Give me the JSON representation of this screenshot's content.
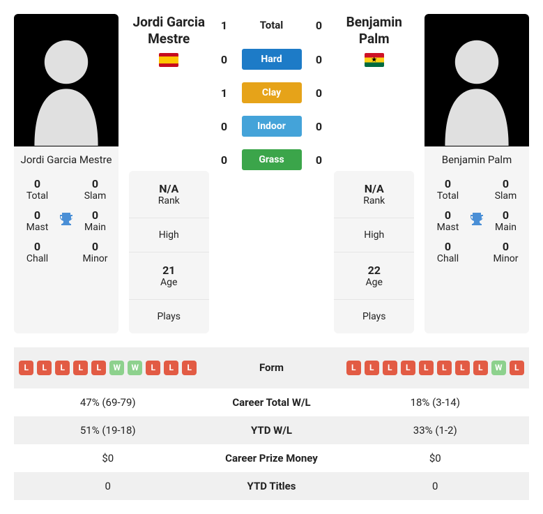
{
  "players": {
    "p1": {
      "name": "Jordi Garcia Mestre",
      "flag_class": "flag-es",
      "rank": "N/A",
      "high": "",
      "age": "21",
      "plays": "",
      "titles": {
        "total": "0",
        "slam": "0",
        "mast": "0",
        "main": "0",
        "chall": "0",
        "minor": "0"
      }
    },
    "p2": {
      "name": "Benjamin Palm",
      "flag_class": "flag-gh",
      "rank": "N/A",
      "high": "",
      "age": "22",
      "plays": "",
      "titles": {
        "total": "0",
        "slam": "0",
        "mast": "0",
        "main": "0",
        "chall": "0",
        "minor": "0"
      }
    }
  },
  "labels": {
    "rank": "Rank",
    "high": "High",
    "age": "Age",
    "plays": "Plays",
    "total": "Total",
    "slam": "Slam",
    "mast": "Mast",
    "main": "Main",
    "chall": "Chall",
    "minor": "Minor"
  },
  "h2h": {
    "total_label": "Total",
    "surfaces": [
      {
        "label": "Hard",
        "p1": "0",
        "p2": "0",
        "css": "hard-bg"
      },
      {
        "label": "Clay",
        "p1": "1",
        "p2": "0",
        "css": "clay-bg"
      },
      {
        "label": "Indoor",
        "p1": "0",
        "p2": "0",
        "css": "indoor-bg"
      },
      {
        "label": "Grass",
        "p1": "0",
        "p2": "0",
        "css": "grass-bg"
      }
    ],
    "total": {
      "p1": "1",
      "p2": "0"
    }
  },
  "form": {
    "p1": [
      "L",
      "L",
      "L",
      "L",
      "L",
      "W",
      "W",
      "L",
      "L",
      "L"
    ],
    "p2": [
      "L",
      "L",
      "L",
      "L",
      "L",
      "L",
      "L",
      "L",
      "W",
      "L"
    ]
  },
  "cmp_labels": {
    "form": "Form",
    "career_wl": "Career Total W/L",
    "ytd_wl": "YTD W/L",
    "prize": "Career Prize Money",
    "ytd_titles": "YTD Titles"
  },
  "cmp": {
    "career_wl": {
      "p1": "47% (69-79)",
      "p2": "18% (3-14)"
    },
    "ytd_wl": {
      "p1": "51% (19-18)",
      "p2": "33% (1-2)"
    },
    "prize": {
      "p1": "$0",
      "p2": "$0"
    },
    "ytd_titles": {
      "p1": "0",
      "p2": "0"
    }
  },
  "colors": {
    "win": "#8dd18d",
    "loss": "#e25b44"
  }
}
